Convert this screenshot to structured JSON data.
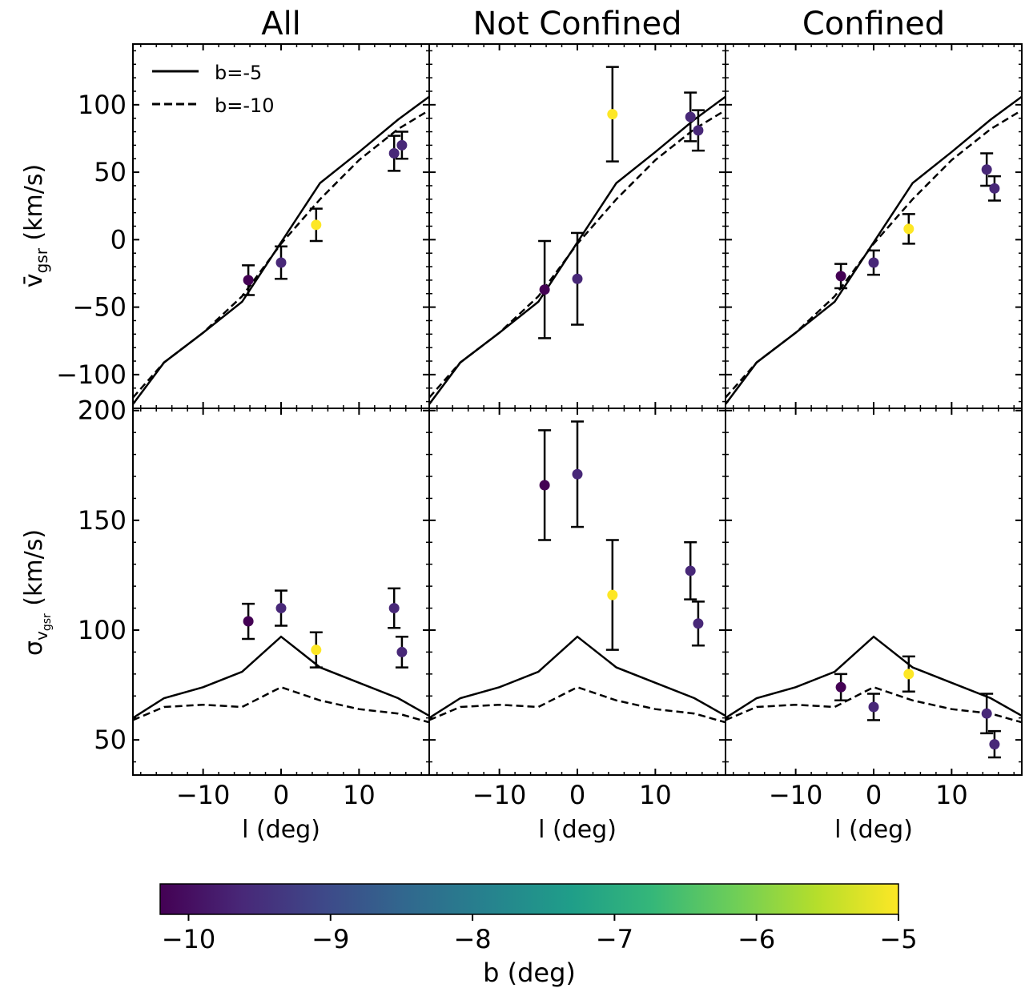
{
  "figure": {
    "panel_titles": [
      "All",
      "Not Confined",
      "Confined"
    ],
    "xlabel": "l (deg)",
    "top_ylabel": "v̄gsr (km/s)",
    "bottom_ylabel": "σvgsr (km/s)",
    "legend": [
      {
        "label": "b=-5",
        "style": "solid"
      },
      {
        "label": "b=-10",
        "style": "dashed"
      }
    ],
    "colorbar": {
      "label": "b (deg)",
      "range": [
        -10.2,
        -5
      ],
      "ticks": [
        -10,
        -9,
        -8,
        -7,
        -6,
        -5
      ],
      "tick_labels": [
        "−10",
        "−9",
        "−8",
        "−7",
        "−6",
        "−5"
      ],
      "colormap": "viridis"
    }
  },
  "chart_data": [
    {
      "type": "scatter",
      "title": "All",
      "xlabel": "",
      "ylabel": "v̄gsr (km/s)",
      "xlim": [
        -19,
        19
      ],
      "ylim": [
        -125,
        145
      ],
      "xticks": [
        -10,
        0,
        10
      ],
      "yticks": [
        -100,
        -50,
        0,
        50,
        100
      ],
      "ytick_labels": [
        "−100",
        "−50",
        "0",
        "50",
        "100"
      ],
      "lines": [
        {
          "name": "b=-5",
          "style": "solid",
          "x": [
            -19,
            -15,
            -10,
            -5,
            0,
            5,
            10,
            15,
            19
          ],
          "y": [
            -122,
            -91,
            -69,
            -46,
            -2,
            42,
            65,
            89,
            106
          ]
        },
        {
          "name": "b=-10",
          "style": "dashed",
          "x": [
            -19,
            -15,
            -10,
            -5,
            0,
            5,
            10,
            15,
            19
          ],
          "y": [
            -117,
            -91,
            -69,
            -42,
            -3,
            30,
            59,
            82,
            96
          ]
        }
      ],
      "points": [
        {
          "x": -4.2,
          "y": -30,
          "err": 11,
          "b": -10.0
        },
        {
          "x": 0,
          "y": -17,
          "err": 12,
          "b": -9.6
        },
        {
          "x": 4.5,
          "y": 11,
          "err": 12,
          "b": -5.0
        },
        {
          "x": 14.5,
          "y": 64,
          "err": 13,
          "b": -9.6
        },
        {
          "x": 15.5,
          "y": 70,
          "err": 10,
          "b": -9.6
        }
      ]
    },
    {
      "type": "scatter",
      "title": "Not Confined",
      "xlabel": "",
      "ylabel": "",
      "xlim": [
        -19,
        19
      ],
      "ylim": [
        -125,
        145
      ],
      "xticks": [
        -10,
        0,
        10
      ],
      "yticks": [
        -100,
        -50,
        0,
        50,
        100
      ],
      "lines": [
        {
          "name": "b=-5",
          "style": "solid",
          "x": [
            -19,
            -15,
            -10,
            -5,
            0,
            5,
            10,
            15,
            19
          ],
          "y": [
            -122,
            -91,
            -69,
            -46,
            -2,
            42,
            65,
            89,
            106
          ]
        },
        {
          "name": "b=-10",
          "style": "dashed",
          "x": [
            -19,
            -15,
            -10,
            -5,
            0,
            5,
            10,
            15,
            19
          ],
          "y": [
            -117,
            -91,
            -69,
            -42,
            -3,
            30,
            59,
            82,
            96
          ]
        }
      ],
      "points": [
        {
          "x": -4.2,
          "y": -37,
          "err": 36,
          "b": -10.0
        },
        {
          "x": 0,
          "y": -29,
          "err": 34,
          "b": -9.6
        },
        {
          "x": 4.5,
          "y": 93,
          "err": 35,
          "b": -5.0
        },
        {
          "x": 14.5,
          "y": 91,
          "err": 18,
          "b": -9.6
        },
        {
          "x": 15.5,
          "y": 81,
          "err": 15,
          "b": -9.6
        }
      ]
    },
    {
      "type": "scatter",
      "title": "Confined",
      "xlabel": "",
      "ylabel": "",
      "xlim": [
        -19,
        19
      ],
      "ylim": [
        -125,
        145
      ],
      "xticks": [
        -10,
        0,
        10
      ],
      "yticks": [
        -100,
        -50,
        0,
        50,
        100
      ],
      "lines": [
        {
          "name": "b=-5",
          "style": "solid",
          "x": [
            -19,
            -15,
            -10,
            -5,
            0,
            5,
            10,
            15,
            19
          ],
          "y": [
            -122,
            -91,
            -69,
            -46,
            -2,
            42,
            65,
            89,
            106
          ]
        },
        {
          "name": "b=-10",
          "style": "dashed",
          "x": [
            -19,
            -15,
            -10,
            -5,
            0,
            5,
            10,
            15,
            19
          ],
          "y": [
            -117,
            -91,
            -69,
            -42,
            -3,
            30,
            59,
            82,
            96
          ]
        }
      ],
      "points": [
        {
          "x": -4.2,
          "y": -27,
          "err": 9,
          "b": -10.0
        },
        {
          "x": 0,
          "y": -17,
          "err": 9,
          "b": -9.6
        },
        {
          "x": 4.5,
          "y": 8,
          "err": 11,
          "b": -5.0
        },
        {
          "x": 14.5,
          "y": 52,
          "err": 12,
          "b": -9.6
        },
        {
          "x": 15.5,
          "y": 38,
          "err": 9,
          "b": -9.6
        }
      ]
    },
    {
      "type": "scatter",
      "title": "",
      "xlabel": "l (deg)",
      "ylabel": "σvgsr (km/s)",
      "xlim": [
        -19,
        19
      ],
      "ylim": [
        34,
        201
      ],
      "xticks": [
        -10,
        0,
        10
      ],
      "xtick_labels": [
        "−10",
        "0",
        "10"
      ],
      "yticks": [
        50,
        100,
        150,
        200
      ],
      "lines": [
        {
          "name": "b=-5",
          "style": "solid",
          "x": [
            -19,
            -15,
            -10,
            -5,
            0,
            5,
            10,
            15,
            19
          ],
          "y": [
            60,
            69,
            74,
            81,
            97,
            83,
            76,
            69,
            61
          ]
        },
        {
          "name": "b=-10",
          "style": "dashed",
          "x": [
            -19,
            -15,
            -10,
            -5,
            0,
            5,
            10,
            15,
            19
          ],
          "y": [
            59,
            65,
            66,
            65,
            74,
            68,
            64,
            62,
            58
          ]
        }
      ],
      "points": [
        {
          "x": -4.2,
          "y": 104,
          "err": 8,
          "b": -10.0
        },
        {
          "x": 0,
          "y": 110,
          "err": 8,
          "b": -9.6
        },
        {
          "x": 4.5,
          "y": 91,
          "err": 8,
          "b": -5.0
        },
        {
          "x": 14.5,
          "y": 110,
          "err": 9,
          "b": -9.6
        },
        {
          "x": 15.5,
          "y": 90,
          "err": 7,
          "b": -9.6
        }
      ]
    },
    {
      "type": "scatter",
      "title": "",
      "xlabel": "l (deg)",
      "ylabel": "",
      "xlim": [
        -19,
        19
      ],
      "ylim": [
        34,
        201
      ],
      "xticks": [
        -10,
        0,
        10
      ],
      "xtick_labels": [
        "−10",
        "0",
        "10"
      ],
      "yticks": [
        50,
        100,
        150,
        200
      ],
      "lines": [
        {
          "name": "b=-5",
          "style": "solid",
          "x": [
            -19,
            -15,
            -10,
            -5,
            0,
            5,
            10,
            15,
            19
          ],
          "y": [
            60,
            69,
            74,
            81,
            97,
            83,
            76,
            69,
            61
          ]
        },
        {
          "name": "b=-10",
          "style": "dashed",
          "x": [
            -19,
            -15,
            -10,
            -5,
            0,
            5,
            10,
            15,
            19
          ],
          "y": [
            59,
            65,
            66,
            65,
            74,
            68,
            64,
            62,
            58
          ]
        }
      ],
      "points": [
        {
          "x": -4.2,
          "y": 166,
          "err": 25,
          "b": -10.0
        },
        {
          "x": 0,
          "y": 171,
          "err": 24,
          "b": -9.6
        },
        {
          "x": 4.5,
          "y": 116,
          "err": 25,
          "b": -5.0
        },
        {
          "x": 14.5,
          "y": 127,
          "err": 13,
          "b": -9.6
        },
        {
          "x": 15.5,
          "y": 103,
          "err": 10,
          "b": -9.6
        }
      ]
    },
    {
      "type": "scatter",
      "title": "",
      "xlabel": "l (deg)",
      "ylabel": "",
      "xlim": [
        -19,
        19
      ],
      "ylim": [
        34,
        201
      ],
      "xticks": [
        -10,
        0,
        10
      ],
      "xtick_labels": [
        "−10",
        "0",
        "10"
      ],
      "yticks": [
        50,
        100,
        150,
        200
      ],
      "lines": [
        {
          "name": "b=-5",
          "style": "solid",
          "x": [
            -19,
            -15,
            -10,
            -5,
            0,
            5,
            10,
            15,
            19
          ],
          "y": [
            60,
            69,
            74,
            81,
            97,
            83,
            76,
            69,
            61
          ]
        },
        {
          "name": "b=-10",
          "style": "dashed",
          "x": [
            -19,
            -15,
            -10,
            -5,
            0,
            5,
            10,
            15,
            19
          ],
          "y": [
            59,
            65,
            66,
            65,
            74,
            68,
            64,
            62,
            58
          ]
        }
      ],
      "points": [
        {
          "x": -4.2,
          "y": 74,
          "err": 6,
          "b": -10.0
        },
        {
          "x": 0,
          "y": 65,
          "err": 6,
          "b": -9.6
        },
        {
          "x": 4.5,
          "y": 80,
          "err": 8,
          "b": -5.0
        },
        {
          "x": 14.5,
          "y": 62,
          "err": 9,
          "b": -9.6
        },
        {
          "x": 15.5,
          "y": 48,
          "err": 6,
          "b": -9.6
        }
      ]
    }
  ]
}
